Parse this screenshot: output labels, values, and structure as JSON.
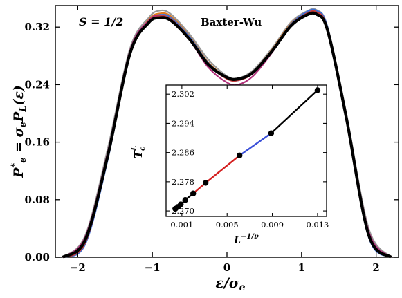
{
  "chart_data": [
    {
      "type": "line",
      "xlabel": "ε/σ_e",
      "ylabel": "P*_e = σ_e P_L(ε)",
      "xlim": [
        -2.3,
        2.3
      ],
      "ylim": [
        0.0,
        0.35
      ],
      "x_ticks": [
        -2,
        -1,
        0,
        1,
        2
      ],
      "y_ticks": [
        0.0,
        0.08,
        0.16,
        0.24,
        0.32
      ],
      "y_tick_labels": [
        "0.00",
        "0.08",
        "0.16",
        "0.24",
        "0.32"
      ],
      "annotations": {
        "spin": "S = 1/2",
        "model": "Baxter-Wu"
      },
      "series": [
        {
          "color": "#9a9a9a",
          "x": [
            -2.2,
            -1.9,
            -1.6,
            -1.3,
            -1.05,
            -0.9,
            -0.75,
            -0.5,
            -0.25,
            0.0,
            0.15,
            0.35,
            0.6,
            0.85,
            1.05,
            1.2,
            1.35,
            1.6,
            1.9,
            2.2
          ],
          "y": [
            0.0,
            0.03,
            0.15,
            0.29,
            0.333,
            0.343,
            0.338,
            0.31,
            0.275,
            0.252,
            0.249,
            0.26,
            0.29,
            0.326,
            0.341,
            0.344,
            0.32,
            0.2,
            0.04,
            0.0
          ]
        },
        {
          "color": "#e07b1f",
          "x": [
            -2.2,
            -1.9,
            -1.6,
            -1.3,
            -1.05,
            -0.9,
            -0.75,
            -0.5,
            -0.25,
            0.0,
            0.15,
            0.35,
            0.6,
            0.85,
            1.05,
            1.2,
            1.35,
            1.6,
            1.9,
            2.2
          ],
          "y": [
            0.0,
            0.022,
            0.14,
            0.285,
            0.33,
            0.339,
            0.335,
            0.307,
            0.271,
            0.25,
            0.247,
            0.258,
            0.288,
            0.324,
            0.339,
            0.342,
            0.318,
            0.195,
            0.032,
            0.0
          ]
        },
        {
          "color": "#3b6fd6",
          "x": [
            -2.2,
            -1.9,
            -1.6,
            -1.3,
            -1.05,
            -0.9,
            -0.75,
            -0.5,
            -0.25,
            0.0,
            0.15,
            0.35,
            0.6,
            0.85,
            1.05,
            1.2,
            1.35,
            1.6,
            1.9,
            2.2
          ],
          "y": [
            0.0,
            0.018,
            0.135,
            0.282,
            0.328,
            0.337,
            0.333,
            0.306,
            0.27,
            0.249,
            0.246,
            0.257,
            0.287,
            0.323,
            0.34,
            0.343,
            0.319,
            0.192,
            0.028,
            0.0
          ]
        },
        {
          "color": "#b0307a",
          "x": [
            -2.2,
            -1.9,
            -1.6,
            -1.3,
            -1.05,
            -0.9,
            -0.75,
            -0.5,
            -0.25,
            0.0,
            0.15,
            0.35,
            0.6,
            0.85,
            1.05,
            1.2,
            1.35,
            1.6,
            1.9,
            2.2
          ],
          "y": [
            0.0,
            0.028,
            0.145,
            0.287,
            0.329,
            0.336,
            0.33,
            0.302,
            0.264,
            0.243,
            0.24,
            0.252,
            0.284,
            0.322,
            0.337,
            0.34,
            0.317,
            0.197,
            0.036,
            0.0
          ]
        },
        {
          "color": "#c43c3c",
          "x": [
            -2.2,
            -1.9,
            -1.6,
            -1.3,
            -1.05,
            -0.9,
            -0.75,
            -0.5,
            -0.25,
            0.0,
            0.15,
            0.35,
            0.6,
            0.85,
            1.05,
            1.2,
            1.35,
            1.6,
            1.9,
            2.2
          ],
          "y": [
            0.0,
            0.02,
            0.138,
            0.283,
            0.327,
            0.335,
            0.331,
            0.304,
            0.268,
            0.248,
            0.246,
            0.256,
            0.286,
            0.322,
            0.338,
            0.341,
            0.317,
            0.193,
            0.03,
            0.0
          ]
        },
        {
          "color": "#000000",
          "x": [
            -2.2,
            -1.9,
            -1.6,
            -1.3,
            -1.05,
            -0.9,
            -0.75,
            -0.5,
            -0.25,
            0.0,
            0.15,
            0.35,
            0.6,
            0.85,
            1.05,
            1.2,
            1.35,
            1.6,
            1.9,
            2.2
          ],
          "y": [
            0.0,
            0.024,
            0.14,
            0.283,
            0.326,
            0.333,
            0.329,
            0.303,
            0.268,
            0.25,
            0.248,
            0.257,
            0.286,
            0.321,
            0.336,
            0.338,
            0.315,
            0.194,
            0.031,
            0.0
          ]
        }
      ]
    },
    {
      "type": "scatter",
      "xlabel": "L^{-1/ν}",
      "ylabel": "T_c^L",
      "xlim": [
        -0.0004,
        0.0138
      ],
      "ylim": [
        2.2685,
        2.3045
      ],
      "x_ticks": [
        0.001,
        0.005,
        0.009,
        0.013
      ],
      "x_tick_labels": [
        "0.001",
        "0.005",
        "0.009",
        "0.013"
      ],
      "y_ticks": [
        2.27,
        2.278,
        2.286,
        2.294,
        2.302
      ],
      "y_tick_labels": [
        "2.270",
        "2.278",
        "2.286",
        "2.294",
        "2.302"
      ],
      "points": {
        "x": [
          0.00042,
          0.00065,
          0.0009,
          0.0013,
          0.002,
          0.0031,
          0.0061,
          0.0089,
          0.013
        ],
        "y": [
          2.2706,
          2.2711,
          2.2718,
          2.273,
          2.2748,
          2.2777,
          2.2852,
          2.2913,
          2.3031
        ]
      },
      "fit_segments": [
        {
          "color": "#000000",
          "x": [
            0.00042,
            0.002
          ]
        },
        {
          "color": "#d42020",
          "x": [
            0.002,
            0.0061
          ]
        },
        {
          "color": "#3a4fd8",
          "x": [
            0.0061,
            0.0089
          ]
        },
        {
          "color": "#000000",
          "x": [
            0.0089,
            0.013
          ]
        }
      ]
    }
  ]
}
